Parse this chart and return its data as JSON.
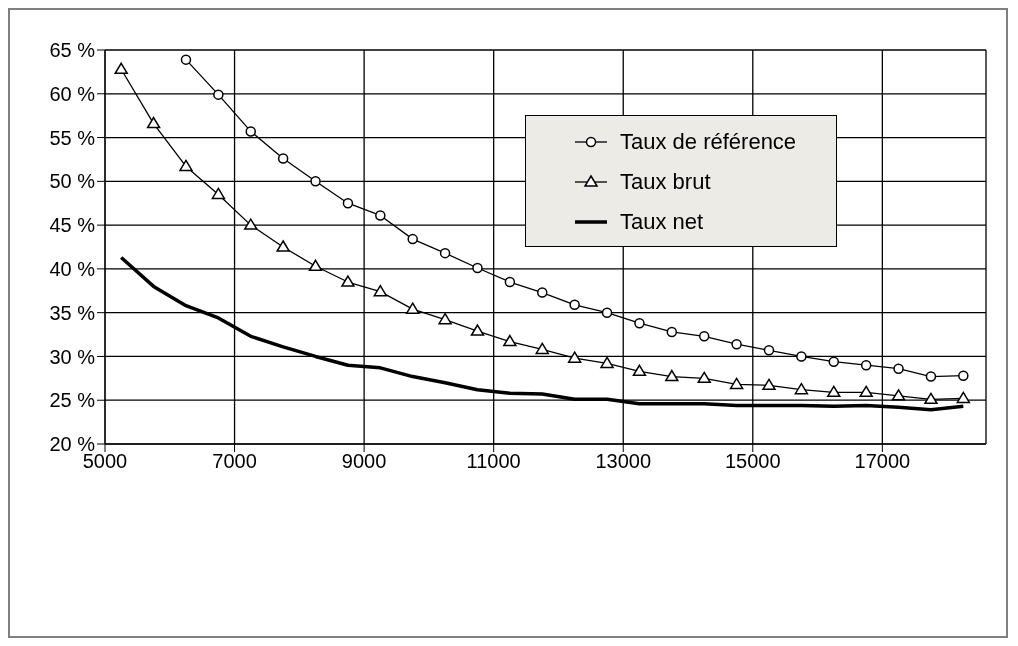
{
  "chart_data": {
    "type": "line",
    "x": [
      5250,
      5750,
      6250,
      6750,
      7250,
      7750,
      8250,
      8750,
      9250,
      9750,
      10250,
      10750,
      11250,
      11750,
      12250,
      12750,
      13250,
      13750,
      14250,
      14750,
      15250,
      15750,
      16250,
      16750,
      17250,
      17750,
      18250
    ],
    "series": [
      {
        "name": "Taux de référence",
        "color": "#000000",
        "marker": "circle",
        "x": [
          6250,
          6750,
          7250,
          7750,
          8250,
          8750,
          9250,
          9750,
          10250,
          10750,
          11250,
          11750,
          12250,
          12750,
          13250,
          13750,
          14250,
          14750,
          15250,
          15750,
          16250,
          16750,
          17250,
          17750,
          18250
        ],
        "values": [
          63.9,
          59.9,
          55.7,
          52.6,
          50.0,
          47.5,
          46.1,
          43.4,
          41.8,
          40.1,
          38.5,
          37.3,
          35.9,
          35.0,
          33.8,
          32.8,
          32.3,
          31.4,
          30.7,
          30.0,
          29.4,
          29.0,
          28.6,
          27.7,
          27.8
        ]
      },
      {
        "name": "Taux brut",
        "color": "#000000",
        "marker": "triangle",
        "values": [
          62.8,
          56.6,
          51.7,
          48.5,
          45.0,
          42.5,
          40.3,
          38.5,
          37.4,
          35.4,
          34.2,
          32.9,
          31.7,
          30.8,
          29.8,
          29.2,
          28.3,
          27.7,
          27.5,
          26.8,
          26.7,
          26.2,
          25.9,
          25.9,
          25.5,
          25.1,
          25.2
        ]
      },
      {
        "name": "Taux net",
        "color": "#000000",
        "marker": "none",
        "values": [
          41.3,
          38.0,
          35.8,
          34.4,
          32.3,
          31.1,
          30.0,
          29.0,
          28.7,
          27.7,
          27.0,
          26.2,
          25.8,
          25.7,
          25.1,
          25.1,
          24.6,
          24.6,
          24.6,
          24.4,
          24.4,
          24.4,
          24.3,
          24.4,
          24.2,
          23.9,
          24.3
        ]
      }
    ],
    "xlim": [
      5000,
      18600
    ],
    "xticks": [
      5000,
      7000,
      9000,
      11000,
      13000,
      15000,
      17000
    ],
    "ylim": [
      20,
      65
    ],
    "yticks": [
      {
        "value": 20,
        "label": "20 %"
      },
      {
        "value": 25,
        "label": "25 %"
      },
      {
        "value": 30,
        "label": "30 %"
      },
      {
        "value": 35,
        "label": "35 %"
      },
      {
        "value": 40,
        "label": "40 %"
      },
      {
        "value": 45,
        "label": "45 %"
      },
      {
        "value": 50,
        "label": "50 %"
      },
      {
        "value": 55,
        "label": "55 %"
      },
      {
        "value": 60,
        "label": "60 %"
      },
      {
        "value": 65,
        "label": "65 %"
      }
    ],
    "grid": true,
    "legend": "top right"
  }
}
